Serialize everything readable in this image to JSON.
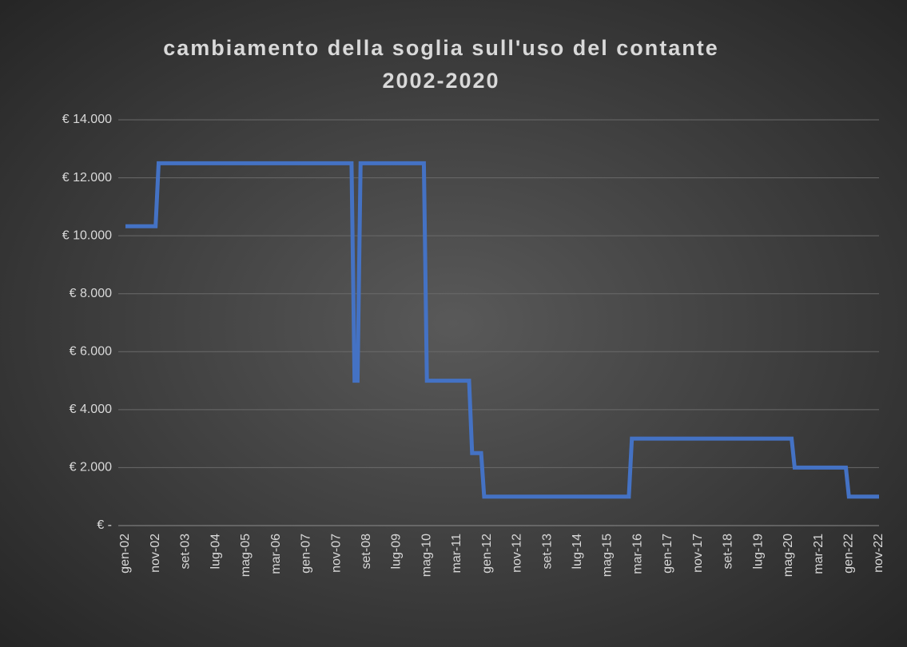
{
  "chart_data": {
    "type": "line",
    "title": [
      "cambiamento della soglia sull'uso del contante",
      "2002-2020"
    ],
    "categories": [
      "gen-02",
      null,
      null,
      null,
      null,
      null,
      null,
      null,
      null,
      null,
      "nov-02",
      null,
      null,
      null,
      null,
      null,
      null,
      null,
      null,
      null,
      "set-03",
      null,
      null,
      null,
      null,
      null,
      null,
      null,
      null,
      null,
      "lug-04",
      null,
      null,
      null,
      null,
      null,
      null,
      null,
      null,
      null,
      "mag-05",
      null,
      null,
      null,
      null,
      null,
      null,
      null,
      null,
      null,
      "mar-06",
      null,
      null,
      null,
      null,
      null,
      null,
      null,
      null,
      null,
      "gen-07",
      null,
      null,
      null,
      null,
      null,
      null,
      null,
      null,
      null,
      "nov-07",
      null,
      null,
      null,
      null,
      null,
      null,
      null,
      null,
      null,
      "set-08",
      null,
      null,
      null,
      null,
      null,
      null,
      null,
      null,
      null,
      "lug-09",
      null,
      null,
      null,
      null,
      null,
      null,
      null,
      null,
      null,
      "mag-10",
      null,
      null,
      null,
      null,
      null,
      null,
      null,
      null,
      null,
      "mar-11",
      null,
      null,
      null,
      null,
      null,
      null,
      null,
      null,
      null,
      "gen-12",
      null,
      null,
      null,
      null,
      null,
      null,
      null,
      null,
      null,
      "nov-12",
      null,
      null,
      null,
      null,
      null,
      null,
      null,
      null,
      null,
      "set-13",
      null,
      null,
      null,
      null,
      null,
      null,
      null,
      null,
      null,
      "lug-14",
      null,
      null,
      null,
      null,
      null,
      null,
      null,
      null,
      null,
      "mag-15",
      null,
      null,
      null,
      null,
      null,
      null,
      null,
      null,
      null,
      "mar-16",
      null,
      null,
      null,
      null,
      null,
      null,
      null,
      null,
      null,
      "gen-17",
      null,
      null,
      null,
      null,
      null,
      null,
      null,
      null,
      null,
      "nov-17",
      null,
      null,
      null,
      null,
      null,
      null,
      null,
      null,
      null,
      "set-18",
      null,
      null,
      null,
      null,
      null,
      null,
      null,
      null,
      null,
      "lug-19",
      null,
      null,
      null,
      null,
      null,
      null,
      null,
      null,
      null,
      "mag-20",
      null,
      null,
      null,
      null,
      null,
      null,
      null,
      null,
      null,
      "mar-21",
      null,
      null,
      null,
      null,
      null,
      null,
      null,
      null,
      null,
      "gen-22",
      null,
      null,
      null,
      null,
      null,
      null,
      null,
      null,
      null,
      "nov-22"
    ],
    "values": [
      10329,
      10329,
      10329,
      10329,
      10329,
      10329,
      10329,
      10329,
      10329,
      10329,
      10329,
      12500,
      12500,
      12500,
      12500,
      12500,
      12500,
      12500,
      12500,
      12500,
      12500,
      12500,
      12500,
      12500,
      12500,
      12500,
      12500,
      12500,
      12500,
      12500,
      12500,
      12500,
      12500,
      12500,
      12500,
      12500,
      12500,
      12500,
      12500,
      12500,
      12500,
      12500,
      12500,
      12500,
      12500,
      12500,
      12500,
      12500,
      12500,
      12500,
      12500,
      12500,
      12500,
      12500,
      12500,
      12500,
      12500,
      12500,
      12500,
      12500,
      12500,
      12500,
      12500,
      12500,
      12500,
      12500,
      12500,
      12500,
      12500,
      12500,
      12500,
      12500,
      12500,
      12500,
      12500,
      12500,
      5000,
      5000,
      12500,
      12500,
      12500,
      12500,
      12500,
      12500,
      12500,
      12500,
      12500,
      12500,
      12500,
      12500,
      12500,
      12500,
      12500,
      12500,
      12500,
      12500,
      12500,
      12500,
      12500,
      12500,
      5000,
      5000,
      5000,
      5000,
      5000,
      5000,
      5000,
      5000,
      5000,
      5000,
      5000,
      5000,
      5000,
      5000,
      5000,
      2500,
      2500,
      2500,
      2500,
      1000,
      1000,
      1000,
      1000,
      1000,
      1000,
      1000,
      1000,
      1000,
      1000,
      1000,
      1000,
      1000,
      1000,
      1000,
      1000,
      1000,
      1000,
      1000,
      1000,
      1000,
      1000,
      1000,
      1000,
      1000,
      1000,
      1000,
      1000,
      1000,
      1000,
      1000,
      1000,
      1000,
      1000,
      1000,
      1000,
      1000,
      1000,
      1000,
      1000,
      1000,
      1000,
      1000,
      1000,
      1000,
      1000,
      1000,
      1000,
      1000,
      3000,
      3000,
      3000,
      3000,
      3000,
      3000,
      3000,
      3000,
      3000,
      3000,
      3000,
      3000,
      3000,
      3000,
      3000,
      3000,
      3000,
      3000,
      3000,
      3000,
      3000,
      3000,
      3000,
      3000,
      3000,
      3000,
      3000,
      3000,
      3000,
      3000,
      3000,
      3000,
      3000,
      3000,
      3000,
      3000,
      3000,
      3000,
      3000,
      3000,
      3000,
      3000,
      3000,
      3000,
      3000,
      3000,
      3000,
      3000,
      3000,
      3000,
      3000,
      3000,
      3000,
      3000,
      2000,
      2000,
      2000,
      2000,
      2000,
      2000,
      2000,
      2000,
      2000,
      2000,
      2000,
      2000,
      2000,
      2000,
      2000,
      2000,
      2000,
      2000,
      1000,
      1000,
      1000,
      1000,
      1000,
      1000,
      1000,
      1000,
      1000,
      1000,
      1000
    ],
    "color": "#4472c4",
    "ylim": [
      0,
      14000
    ],
    "yticks": [
      {
        "value": 0,
        "label": "€ -"
      },
      {
        "value": 2000,
        "label": "€ 2.000"
      },
      {
        "value": 4000,
        "label": "€ 4.000"
      },
      {
        "value": 6000,
        "label": "€ 6.000"
      },
      {
        "value": 8000,
        "label": "€ 8.000"
      },
      {
        "value": 10000,
        "label": "€ 10.000"
      },
      {
        "value": 12000,
        "label": "€ 12.000"
      },
      {
        "value": 14000,
        "label": "€ 14.000"
      }
    ],
    "grid": true
  }
}
